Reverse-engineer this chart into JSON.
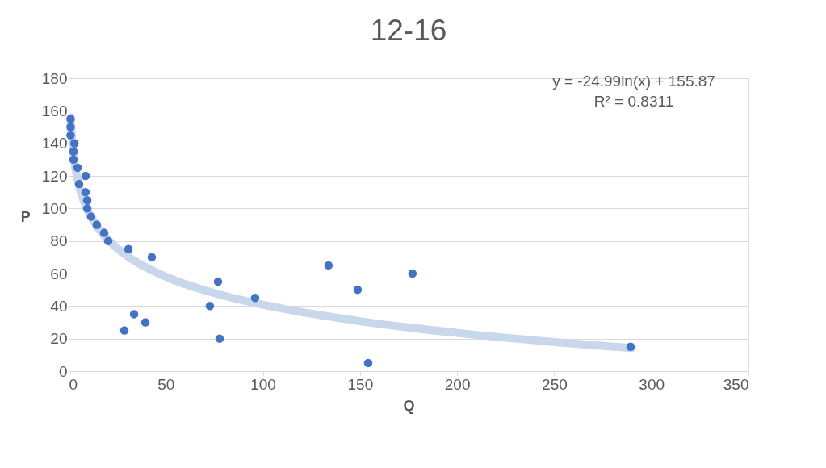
{
  "chart_data": {
    "type": "scatter",
    "title": "12-16",
    "xlabel": "Q",
    "ylabel": "P",
    "xlim": [
      0,
      350
    ],
    "xticks": [
      0,
      50,
      100,
      150,
      200,
      250,
      300,
      350
    ],
    "ylim": [
      0,
      180
    ],
    "yticks": [
      0,
      20,
      40,
      60,
      80,
      100,
      120,
      140,
      160,
      180
    ],
    "grid": "y",
    "series": [
      {
        "type": "line",
        "color": "#c9d7ec",
        "x": [
          1,
          2,
          3,
          5,
          7,
          10,
          15,
          20,
          30,
          50,
          75,
          100,
          150,
          200,
          250,
          290
        ],
        "values": [
          155.9,
          138.5,
          128.4,
          115.6,
          107.2,
          98.3,
          88.2,
          81.0,
          70.9,
          58.1,
          48.0,
          40.8,
          30.7,
          23.5,
          17.9,
          14.2
        ]
      },
      {
        "marker": "circle",
        "color": "#4472c4",
        "x": [
          1,
          1,
          1,
          3,
          2.5,
          2.5,
          4.6,
          5.4,
          8.7,
          8.7,
          9.6,
          9.6,
          11.6,
          14.5,
          18.3,
          20.4,
          30.8,
          42.8,
          76.9,
          72.7,
          33.7,
          39.5,
          28.7,
          77.7,
          96,
          133.8,
          148.8,
          154.2,
          177,
          289.3
        ],
        "values": [
          155,
          150,
          145,
          140,
          135,
          130,
          125,
          115,
          120,
          110,
          105,
          100,
          95,
          90,
          85,
          80,
          75,
          70,
          55,
          40,
          35,
          30,
          25,
          20,
          45,
          65,
          50,
          5,
          60,
          15
        ]
      }
    ],
    "annotations": [
      "y = -24.99ln(x) + 155.87",
      "R² = 0.8311"
    ]
  }
}
